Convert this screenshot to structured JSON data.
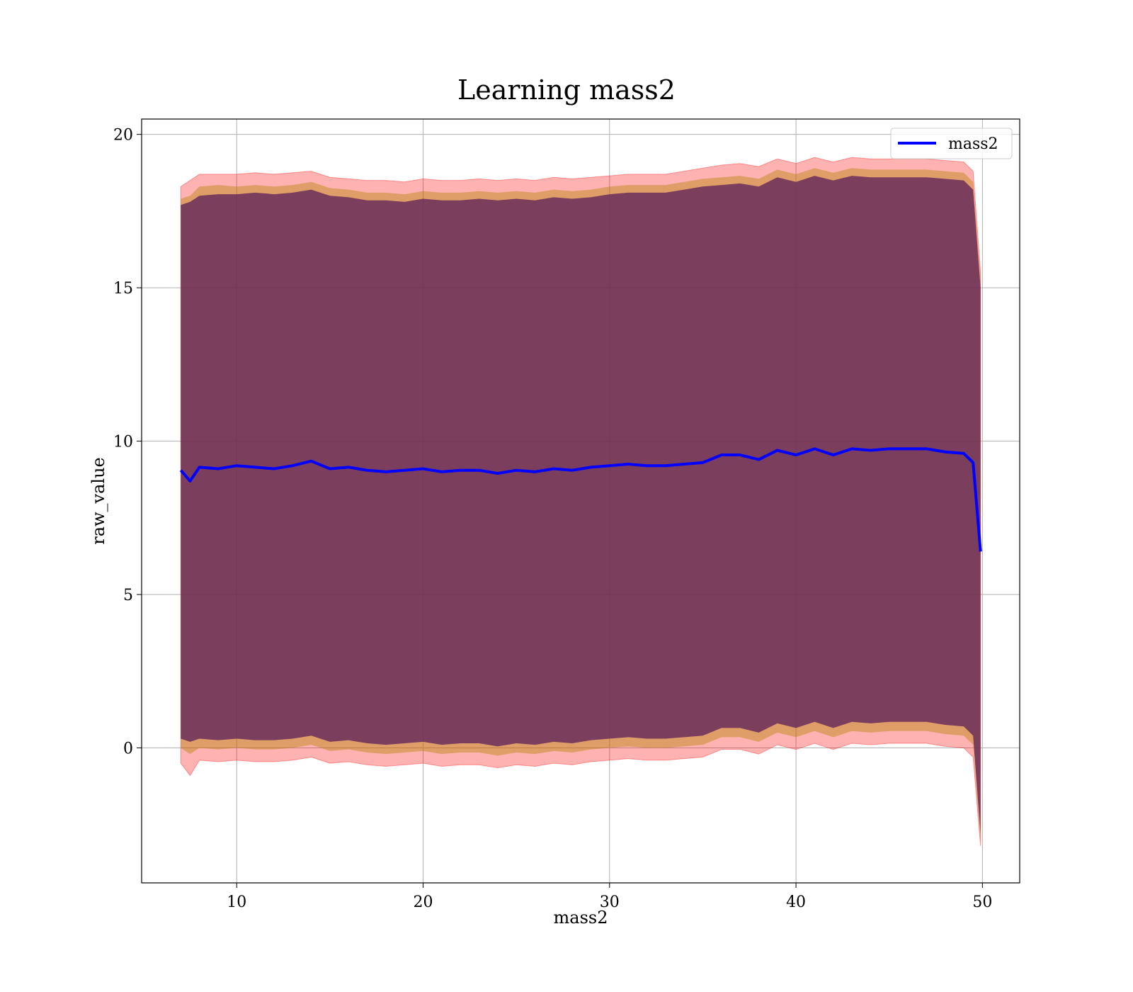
{
  "chart_data": {
    "type": "line",
    "title": "Learning mass2",
    "xlabel": "mass2",
    "ylabel": "raw_value",
    "xlim": [
      4.9,
      52.0
    ],
    "ylim": [
      -4.4,
      20.5
    ],
    "xticks": [
      10,
      20,
      30,
      40,
      50
    ],
    "yticks": [
      0,
      5,
      10,
      15,
      20
    ],
    "grid": true,
    "legend_position": "upper right",
    "colors": {
      "line": "#0000ff",
      "band_outer": "#ff0000",
      "band_middle": "#b8860b",
      "band_inner": "#6b2d5c",
      "grid": "#b0b0b0"
    },
    "series": [
      {
        "name": "mass2",
        "x": [
          7.0,
          7.5,
          8.0,
          9.0,
          10.0,
          11.0,
          12.0,
          13.0,
          14.0,
          15.0,
          16.0,
          17.0,
          18.0,
          19.0,
          20.0,
          21.0,
          22.0,
          23.0,
          24.0,
          25.0,
          26.0,
          27.0,
          28.0,
          29.0,
          30.0,
          31.0,
          32.0,
          33.0,
          34.0,
          35.0,
          36.0,
          37.0,
          38.0,
          39.0,
          40.0,
          41.0,
          42.0,
          43.0,
          44.0,
          45.0,
          46.0,
          47.0,
          48.0,
          49.0,
          49.5,
          49.9
        ],
        "y": [
          9.05,
          8.7,
          9.15,
          9.1,
          9.2,
          9.15,
          9.1,
          9.2,
          9.35,
          9.1,
          9.15,
          9.05,
          9.0,
          9.05,
          9.1,
          9.0,
          9.05,
          9.05,
          8.95,
          9.05,
          9.0,
          9.1,
          9.05,
          9.15,
          9.2,
          9.25,
          9.2,
          9.2,
          9.25,
          9.3,
          9.55,
          9.55,
          9.4,
          9.7,
          9.55,
          9.75,
          9.55,
          9.75,
          9.7,
          9.75,
          9.75,
          9.75,
          9.65,
          9.6,
          9.3,
          6.4
        ]
      }
    ],
    "bands": {
      "outer_upper": [
        18.3,
        18.5,
        18.7,
        18.7,
        18.7,
        18.75,
        18.7,
        18.75,
        18.8,
        18.6,
        18.55,
        18.5,
        18.5,
        18.45,
        18.55,
        18.5,
        18.5,
        18.55,
        18.5,
        18.55,
        18.5,
        18.6,
        18.55,
        18.6,
        18.65,
        18.7,
        18.7,
        18.7,
        18.8,
        18.9,
        19.0,
        19.05,
        18.95,
        19.2,
        19.05,
        19.25,
        19.1,
        19.25,
        19.2,
        19.2,
        19.2,
        19.2,
        19.15,
        19.1,
        18.8,
        15.5
      ],
      "middle_upper": [
        17.9,
        18.0,
        18.3,
        18.35,
        18.3,
        18.35,
        18.3,
        18.35,
        18.45,
        18.25,
        18.2,
        18.1,
        18.1,
        18.05,
        18.15,
        18.1,
        18.1,
        18.15,
        18.1,
        18.15,
        18.1,
        18.2,
        18.15,
        18.2,
        18.3,
        18.35,
        18.35,
        18.35,
        18.45,
        18.55,
        18.6,
        18.65,
        18.55,
        18.85,
        18.7,
        18.9,
        18.75,
        18.9,
        18.85,
        18.85,
        18.85,
        18.85,
        18.8,
        18.75,
        18.45,
        15.2
      ],
      "inner_upper": [
        17.7,
        17.8,
        18.0,
        18.05,
        18.05,
        18.1,
        18.05,
        18.1,
        18.2,
        18.0,
        17.95,
        17.85,
        17.85,
        17.8,
        17.9,
        17.85,
        17.85,
        17.9,
        17.85,
        17.9,
        17.85,
        17.95,
        17.9,
        17.95,
        18.05,
        18.1,
        18.1,
        18.1,
        18.2,
        18.3,
        18.35,
        18.4,
        18.3,
        18.6,
        18.45,
        18.65,
        18.5,
        18.65,
        18.6,
        18.6,
        18.6,
        18.6,
        18.55,
        18.5,
        18.2,
        15.0
      ],
      "inner_lower": [
        0.3,
        0.2,
        0.3,
        0.25,
        0.3,
        0.25,
        0.25,
        0.3,
        0.4,
        0.2,
        0.25,
        0.15,
        0.1,
        0.15,
        0.2,
        0.1,
        0.15,
        0.15,
        0.05,
        0.15,
        0.1,
        0.2,
        0.15,
        0.25,
        0.3,
        0.35,
        0.3,
        0.3,
        0.35,
        0.4,
        0.65,
        0.65,
        0.5,
        0.8,
        0.65,
        0.85,
        0.65,
        0.85,
        0.8,
        0.85,
        0.85,
        0.85,
        0.75,
        0.7,
        0.4,
        -2.8
      ],
      "middle_lower": [
        0.0,
        -0.2,
        0.0,
        -0.05,
        0.0,
        -0.05,
        -0.05,
        0.0,
        0.1,
        -0.1,
        -0.05,
        -0.15,
        -0.2,
        -0.15,
        -0.1,
        -0.2,
        -0.15,
        -0.15,
        -0.25,
        -0.15,
        -0.2,
        -0.1,
        -0.15,
        -0.05,
        0.0,
        0.05,
        0.0,
        0.0,
        0.05,
        0.1,
        0.35,
        0.35,
        0.2,
        0.5,
        0.35,
        0.55,
        0.35,
        0.55,
        0.5,
        0.55,
        0.55,
        0.55,
        0.45,
        0.4,
        0.1,
        -3.0
      ],
      "outer_lower": [
        -0.5,
        -0.9,
        -0.4,
        -0.45,
        -0.4,
        -0.45,
        -0.45,
        -0.4,
        -0.3,
        -0.5,
        -0.45,
        -0.55,
        -0.6,
        -0.55,
        -0.5,
        -0.6,
        -0.55,
        -0.55,
        -0.65,
        -0.55,
        -0.6,
        -0.5,
        -0.55,
        -0.45,
        -0.4,
        -0.35,
        -0.4,
        -0.4,
        -0.35,
        -0.3,
        -0.05,
        -0.05,
        -0.2,
        0.1,
        -0.05,
        0.15,
        -0.05,
        0.15,
        0.1,
        0.15,
        0.15,
        0.15,
        0.05,
        0.0,
        -0.3,
        -3.2
      ]
    }
  }
}
